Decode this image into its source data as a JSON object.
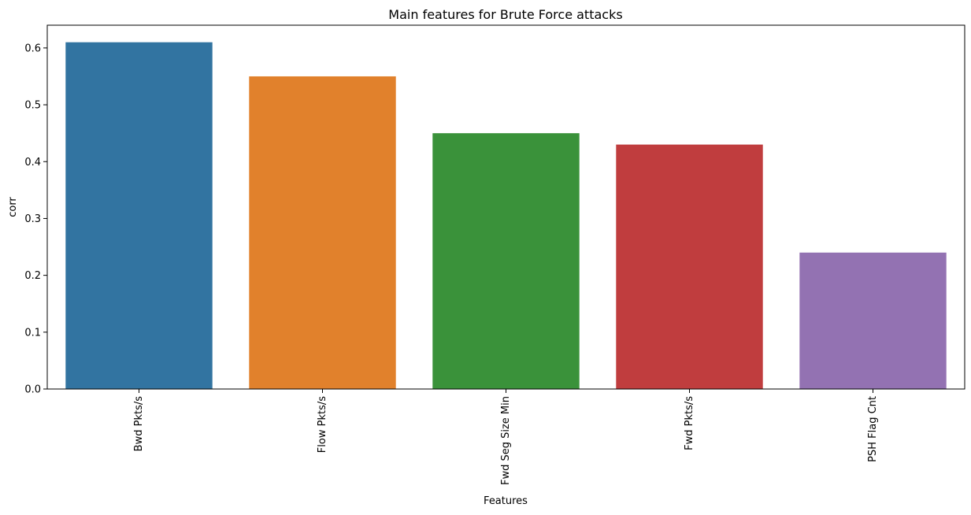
{
  "chart_data": {
    "type": "bar",
    "title": "Main features for Brute Force attacks",
    "xlabel": "Features",
    "ylabel": "corr",
    "categories": [
      "Bwd Pkts/s",
      "Flow Pkts/s",
      "Fwd Seg Size Min",
      "Fwd Pkts/s",
      "PSH Flag Cnt"
    ],
    "values": [
      0.61,
      0.55,
      0.45,
      0.43,
      0.24
    ],
    "colors": [
      "#3274a1",
      "#e1812c",
      "#3a923a",
      "#c03d3e",
      "#9372b2"
    ],
    "ylim": [
      0,
      0.64
    ],
    "yticks": [
      0.0,
      0.1,
      0.2,
      0.3,
      0.4,
      0.5,
      0.6
    ],
    "ytick_labels": [
      "0.0",
      "0.1",
      "0.2",
      "0.3",
      "0.4",
      "0.5",
      "0.6"
    ],
    "grid": false,
    "legend": "none",
    "xtick_rotation": "vertical"
  }
}
